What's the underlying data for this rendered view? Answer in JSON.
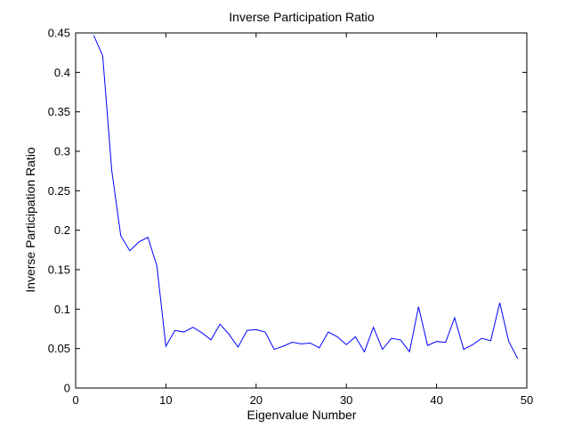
{
  "chart_data": {
    "type": "line",
    "title": "Inverse Participation Ratio",
    "xlabel": "Eigenvalue Number",
    "ylabel": "Inverse Participation Ratio",
    "xlim": [
      0,
      50
    ],
    "ylim": [
      0,
      0.45
    ],
    "xticks": [
      "0",
      "10",
      "20",
      "30",
      "40",
      "50"
    ],
    "yticks": [
      "0",
      "0.05",
      "0.1",
      "0.15",
      "0.2",
      "0.25",
      "0.3",
      "0.35",
      "0.4",
      "0.45"
    ],
    "grid": false,
    "line_color": "#0000ff",
    "series": [
      {
        "x": [
          2,
          3,
          4,
          5,
          6,
          7,
          8,
          9,
          10,
          11,
          12,
          13,
          14,
          15,
          16,
          17,
          18,
          19,
          20,
          21,
          22,
          23,
          24,
          25,
          26,
          27,
          28,
          29,
          30,
          31,
          32,
          33,
          34,
          35,
          36,
          37,
          38,
          39,
          40,
          41,
          42,
          43,
          44,
          45,
          46,
          47,
          48,
          49
        ],
        "values": [
          0.447,
          0.421,
          0.276,
          0.193,
          0.174,
          0.185,
          0.191,
          0.155,
          0.053,
          0.073,
          0.071,
          0.077,
          0.07,
          0.061,
          0.081,
          0.068,
          0.052,
          0.073,
          0.074,
          0.071,
          0.049,
          0.053,
          0.058,
          0.056,
          0.057,
          0.051,
          0.071,
          0.065,
          0.055,
          0.065,
          0.046,
          0.077,
          0.049,
          0.063,
          0.061,
          0.046,
          0.103,
          0.054,
          0.059,
          0.058,
          0.089,
          0.049,
          0.055,
          0.063,
          0.06,
          0.108,
          0.059,
          0.037
        ]
      }
    ]
  }
}
